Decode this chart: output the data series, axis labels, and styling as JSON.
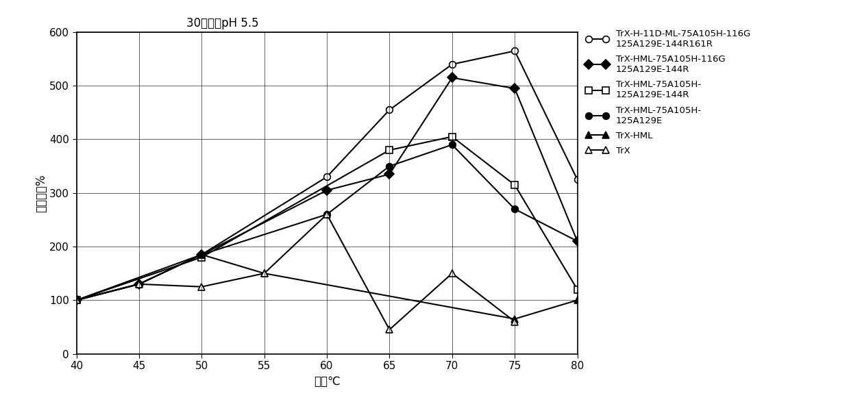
{
  "title": "30分钟，pH 5.5",
  "ylabel": "相对活性%",
  "xlabel": "温度℃",
  "x": [
    40,
    45,
    50,
    55,
    60,
    65,
    70,
    75,
    80
  ],
  "series": [
    {
      "label": "TrX-H-11D-ML-75A105H-116G\n125A129E-144R161R",
      "y": [
        100,
        130,
        185,
        null,
        330,
        455,
        540,
        565,
        325
      ],
      "marker": "o",
      "fillstyle": "none"
    },
    {
      "label": "TrX-HML-75A105H-116G\n125A129E-144R",
      "y": [
        100,
        130,
        185,
        null,
        305,
        335,
        515,
        495,
        210
      ],
      "marker": "D",
      "fillstyle": "full"
    },
    {
      "label": "TrX-HML-75A105H-\n125A129E-144R",
      "y": [
        100,
        null,
        180,
        null,
        null,
        380,
        405,
        315,
        120
      ],
      "marker": "s",
      "fillstyle": "none"
    },
    {
      "label": "TrX-HML-75A105H-\n125A129E",
      "y": [
        100,
        null,
        185,
        null,
        260,
        350,
        390,
        270,
        210
      ],
      "marker": "o",
      "fillstyle": "full"
    },
    {
      "label": "TrX-HML",
      "y": [
        100,
        130,
        185,
        150,
        null,
        null,
        null,
        65,
        100
      ],
      "marker": "^",
      "fillstyle": "full"
    },
    {
      "label": "TrX",
      "y": [
        100,
        130,
        125,
        150,
        260,
        45,
        150,
        60,
        null
      ],
      "marker": "^",
      "fillstyle": "none"
    }
  ],
  "ylim": [
    0,
    600
  ],
  "xlim": [
    40,
    80
  ],
  "yticks": [
    0,
    100,
    200,
    300,
    400,
    500,
    600
  ],
  "xticks": [
    40,
    45,
    50,
    55,
    60,
    65,
    70,
    75,
    80
  ],
  "background_color": "white",
  "figwidth": 12.39,
  "figheight": 5.87,
  "dpi": 100
}
